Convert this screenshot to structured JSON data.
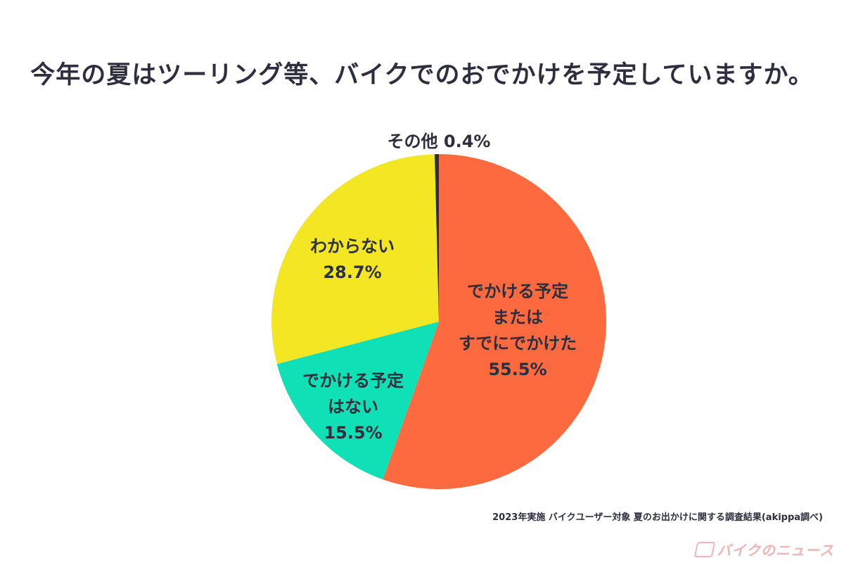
{
  "title": "今年の夏はツーリング等、バイクでのおでかけを予定していますか。",
  "source": "2023年実施 バイクユーザー対象 夏のお出かけに関する調査結果(akippa調べ)",
  "watermark": "バイクのニュース",
  "chart_data": {
    "type": "pie",
    "start": "12 o'clock, clockwise",
    "slices": [
      {
        "name": "でかける予定またはすでにでかけた",
        "value": 55.5,
        "color": "#fd6a3f",
        "label_lines": [
          "でかける予定",
          "または",
          "すでにでかけた",
          "55.5%"
        ]
      },
      {
        "name": "でかける予定はない",
        "value": 15.5,
        "color": "#0fe0b5",
        "label_lines": [
          "でかける予定",
          "はない",
          "15.5%"
        ]
      },
      {
        "name": "わからない",
        "value": 28.7,
        "color": "#f3e622",
        "label_lines": [
          "わからない",
          "28.7%"
        ]
      },
      {
        "name": "その他",
        "value": 0.4,
        "color": "#2e2f3e",
        "label_lines": [
          "その他 0.4%"
        ]
      }
    ]
  }
}
